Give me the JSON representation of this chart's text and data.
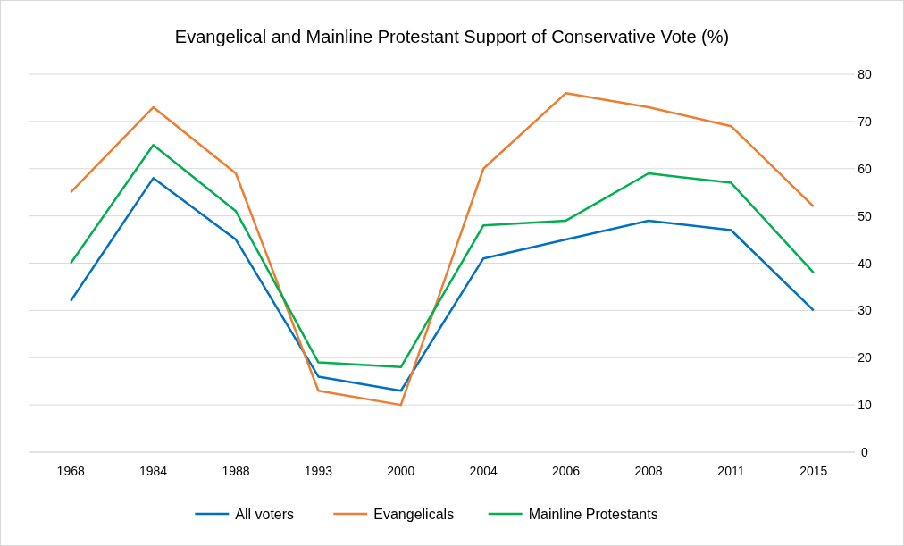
{
  "chart_data": {
    "type": "line",
    "title": "Evangelical and Mainline Protestant Support of Conservative Vote (%)",
    "categories": [
      "1968",
      "1984",
      "1988",
      "1993",
      "2000",
      "2004",
      "2006",
      "2008",
      "2011",
      "2015"
    ],
    "series": [
      {
        "name": "All voters",
        "color": "#0070c0",
        "values": [
          32,
          58,
          45,
          16,
          13,
          41,
          45,
          49,
          47,
          30
        ]
      },
      {
        "name": "Evangelicals",
        "color": "#ed7d31",
        "values": [
          55,
          73,
          59,
          13,
          10,
          60,
          76,
          73,
          69,
          52
        ]
      },
      {
        "name": "Mainline Protestants",
        "color": "#00b050",
        "values": [
          40,
          65,
          51,
          19,
          18,
          48,
          49,
          59,
          57,
          38
        ]
      }
    ],
    "ylim": [
      0,
      80
    ],
    "yticks": [
      0,
      10,
      20,
      30,
      40,
      50,
      60,
      70,
      80
    ],
    "grid": "y",
    "legend": "bottom",
    "marker": "none",
    "line_style": "solid"
  }
}
